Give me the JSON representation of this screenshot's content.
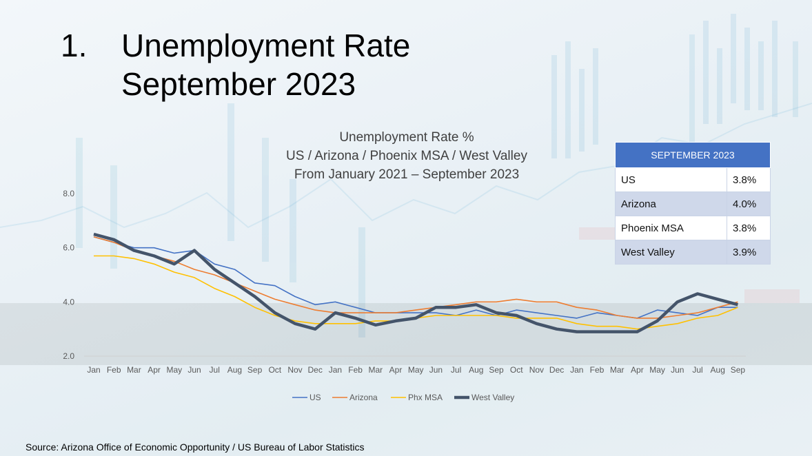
{
  "slide": {
    "number": "1.",
    "title_line1": "Unemployment Rate",
    "title_line2": "September 2023",
    "source": "Source: Arizona Office of Economic Opportunity / US Bureau of Labor Statistics"
  },
  "table": {
    "header": "SEPTEMBER 2023",
    "rows": [
      {
        "label": "US",
        "value": "3.8%"
      },
      {
        "label": "Arizona",
        "value": "4.0%"
      },
      {
        "label": "Phoenix MSA",
        "value": "3.8%"
      },
      {
        "label": "West Valley",
        "value": "3.9%"
      }
    ]
  },
  "chart_data": {
    "type": "line",
    "title": [
      "Unemployment Rate %",
      "US / Arizona / Phoenix MSA / West Valley",
      "From January 2021 – September 2023"
    ],
    "x": [
      "Jan",
      "Feb",
      "Mar",
      "Apr",
      "May",
      "Jun",
      "Jul",
      "Aug",
      "Sep",
      "Oct",
      "Nov",
      "Dec",
      "Jan",
      "Feb",
      "Mar",
      "Apr",
      "May",
      "Jun",
      "Jul",
      "Aug",
      "Sep",
      "Oct",
      "Nov",
      "Dec",
      "Jan",
      "Feb",
      "Mar",
      "Apr",
      "May",
      "Jun",
      "Jul",
      "Aug",
      "Sep"
    ],
    "yticks": [
      "2.0",
      "4.0",
      "6.0",
      "8.0"
    ],
    "ylim": [
      2,
      8
    ],
    "legend_position": "bottom",
    "series": [
      {
        "name": "US",
        "color": "#4472c4",
        "values": [
          6.4,
          6.2,
          6.0,
          6.0,
          5.8,
          5.9,
          5.4,
          5.2,
          4.7,
          4.6,
          4.2,
          3.9,
          4.0,
          3.8,
          3.6,
          3.6,
          3.6,
          3.6,
          3.5,
          3.7,
          3.5,
          3.7,
          3.6,
          3.5,
          3.4,
          3.6,
          3.5,
          3.4,
          3.7,
          3.6,
          3.5,
          3.8,
          3.8
        ]
      },
      {
        "name": "Arizona",
        "color": "#ed7d31",
        "values": [
          6.4,
          6.2,
          5.9,
          5.7,
          5.5,
          5.2,
          5.0,
          4.7,
          4.4,
          4.1,
          3.9,
          3.7,
          3.6,
          3.6,
          3.6,
          3.6,
          3.7,
          3.8,
          3.9,
          4.0,
          4.0,
          4.1,
          4.0,
          4.0,
          3.8,
          3.7,
          3.5,
          3.4,
          3.4,
          3.5,
          3.6,
          3.8,
          4.0
        ]
      },
      {
        "name": "Phx MSA",
        "color": "#ffc000",
        "values": [
          5.7,
          5.7,
          5.6,
          5.4,
          5.1,
          4.9,
          4.5,
          4.2,
          3.8,
          3.5,
          3.3,
          3.2,
          3.2,
          3.2,
          3.3,
          3.3,
          3.4,
          3.5,
          3.5,
          3.5,
          3.5,
          3.4,
          3.4,
          3.4,
          3.2,
          3.1,
          3.1,
          3.0,
          3.1,
          3.2,
          3.4,
          3.5,
          3.8
        ]
      },
      {
        "name": "West Valley",
        "color": "#44546a",
        "values": [
          6.5,
          6.3,
          5.9,
          5.7,
          5.4,
          5.9,
          5.2,
          4.7,
          4.2,
          3.6,
          3.2,
          3.0,
          3.6,
          3.4,
          3.15,
          3.3,
          3.4,
          3.8,
          3.8,
          3.9,
          3.6,
          3.5,
          3.2,
          3.0,
          2.9,
          2.9,
          2.9,
          2.9,
          3.3,
          4.0,
          4.3,
          4.1,
          3.9
        ]
      }
    ]
  }
}
